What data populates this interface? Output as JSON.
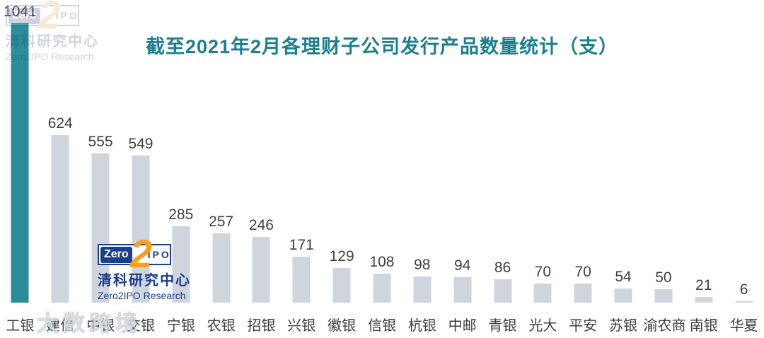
{
  "chart_data": {
    "type": "bar",
    "title": "截至2021年2月各理财子公司发行产品数量统计（支）",
    "categories": [
      "工银",
      "建信",
      "中银",
      "交银",
      "宁银",
      "农银",
      "招银",
      "兴银",
      "徽银",
      "信银",
      "杭银",
      "中邮",
      "青银",
      "光大",
      "平安",
      "苏银",
      "渝农商",
      "南银",
      "华夏"
    ],
    "values": [
      1041,
      624,
      555,
      549,
      285,
      257,
      246,
      171,
      129,
      108,
      98,
      94,
      86,
      70,
      70,
      54,
      50,
      21,
      6
    ],
    "xlabel": "",
    "ylabel": "",
    "ylim": [
      0,
      1100
    ],
    "grid": false,
    "legend": null,
    "value_labels": true,
    "highlight_index": 0,
    "bar_color": "#D0D4DD",
    "highlight_color": "#2A8D99",
    "title_color": "#1A7F8F"
  },
  "logo": {
    "zero": "Zero",
    "two": "2",
    "ipo": "IPO",
    "cn_name": "清科研究中心",
    "en_name": "Zero2IPO Research"
  },
  "watermarks": {
    "bottom_left": "大数跨境"
  }
}
